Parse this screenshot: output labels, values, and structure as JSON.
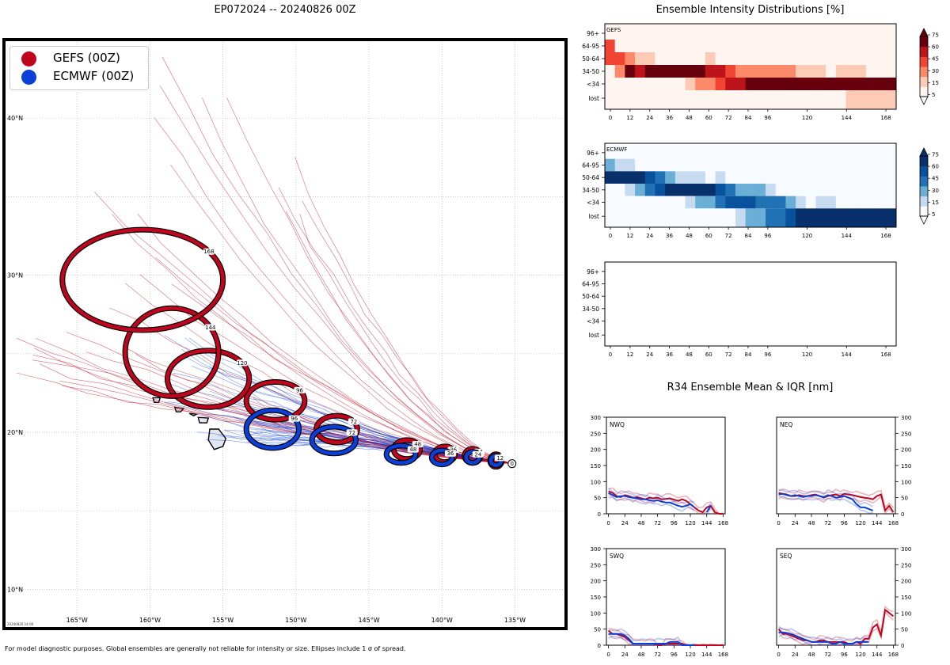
{
  "page": {
    "title": "EP072024 -- 20240826 00Z",
    "footer": "For model diagnostic purposes. Global ensembles are generally not reliable for intensity or size. Ellipses include 1 σ of spread.",
    "stamp": "20240826 14:06"
  },
  "colors": {
    "gefs": "#c0061f",
    "ecmwf": "#0a3fd8"
  },
  "map": {
    "legend": [
      {
        "label": "GEFS (00Z)",
        "color": "#c0061f"
      },
      {
        "label": "ECMWF (00Z)",
        "color": "#0a3fd8"
      }
    ],
    "lon_ticks": [
      "165°W",
      "160°W",
      "155°W",
      "150°W",
      "145°W",
      "140°W",
      "135°W"
    ],
    "lat_ticks": [
      "40°N",
      "30°N",
      "20°N",
      "10°N"
    ],
    "lon_range": [
      -170,
      -131.5
    ],
    "lat_range": [
      7.5,
      45
    ],
    "storm_start": [
      -135.2,
      18.0
    ],
    "gefs_ellipses": [
      {
        "label": "12",
        "lon": -136.3,
        "lat": 18.2,
        "rx": 0.4,
        "ry": 0.4
      },
      {
        "label": "24",
        "lon": -137.9,
        "lat": 18.5,
        "rx": 0.55,
        "ry": 0.45
      },
      {
        "label": "36",
        "lon": -139.8,
        "lat": 18.6,
        "rx": 0.7,
        "ry": 0.5
      },
      {
        "label": "48",
        "lon": -142.4,
        "lat": 18.9,
        "rx": 0.9,
        "ry": 0.6
      },
      {
        "label": "72",
        "lon": -147.2,
        "lat": 20.2,
        "rx": 1.4,
        "ry": 0.85
      },
      {
        "label": "96",
        "lon": -151.4,
        "lat": 22.0,
        "rx": 2.0,
        "ry": 1.2
      },
      {
        "label": "120",
        "lon": -156.0,
        "lat": 23.4,
        "rx": 2.8,
        "ry": 1.8
      },
      {
        "label": "144",
        "lon": -158.5,
        "lat": 25.1,
        "rx": 3.2,
        "ry": 2.8
      },
      {
        "label": "168",
        "lon": -160.5,
        "lat": 29.7,
        "rx": 5.5,
        "ry": 3.2
      }
    ],
    "ecmwf_ellipses": [
      {
        "label": "12",
        "lon": -136.3,
        "lat": 18.2,
        "rx": 0.35,
        "ry": 0.3
      },
      {
        "label": "24",
        "lon": -137.9,
        "lat": 18.4,
        "rx": 0.45,
        "ry": 0.35
      },
      {
        "label": "36",
        "lon": -140.0,
        "lat": 18.4,
        "rx": 0.7,
        "ry": 0.45
      },
      {
        "label": "48",
        "lon": -142.8,
        "lat": 18.6,
        "rx": 1.0,
        "ry": 0.55
      },
      {
        "label": "72",
        "lon": -147.4,
        "lat": 19.5,
        "rx": 1.5,
        "ry": 0.85
      },
      {
        "label": "96",
        "lon": -151.6,
        "lat": 20.2,
        "rx": 1.8,
        "ry": 1.2
      }
    ]
  },
  "intensity": {
    "title": "Ensemble Intensity Distributions [%]",
    "categories": [
      "96+",
      "64-95",
      "50-64",
      "34-50",
      "<34",
      "lost"
    ],
    "hours": [
      "0",
      "12",
      "24",
      "36",
      "48",
      "60",
      "72",
      "84",
      "96",
      "120",
      "144",
      "168"
    ],
    "panels": [
      {
        "name": "GEFS",
        "colorbar": [
          "75",
          "60",
          "45",
          "30",
          "15",
          "5"
        ]
      },
      {
        "name": "ECMWF",
        "colorbar": [
          "75",
          "60",
          "45",
          "30",
          "15",
          "5"
        ]
      },
      {
        "name": "",
        "colorbar": []
      }
    ]
  },
  "chart_data": {
    "type": "line",
    "title": "R34 Ensemble Mean & IQR [nm]",
    "hours": [
      0,
      6,
      12,
      18,
      24,
      30,
      36,
      42,
      48,
      54,
      60,
      66,
      72,
      78,
      84,
      90,
      96,
      102,
      108,
      114,
      120,
      126,
      132,
      138,
      144,
      150,
      156,
      162,
      168
    ],
    "yticks": [
      "0",
      "50",
      "100",
      "150",
      "200",
      "250",
      "300"
    ],
    "xticks": [
      "0",
      "24",
      "48",
      "72",
      "96",
      "120",
      "144",
      "168"
    ],
    "ylim": [
      0,
      300
    ],
    "xlim": [
      -3,
      171
    ],
    "quadrants": [
      {
        "name": "NWQ",
        "series": [
          {
            "name": "GEFS",
            "values": [
              70,
              65,
              55,
              52,
              58,
              55,
              50,
              52,
              48,
              45,
              50,
              48,
              50,
              45,
              46,
              48,
              44,
              40,
              45,
              40,
              30,
              20,
              10,
              5,
              20,
              25,
              5,
              0,
              0
            ]
          },
          {
            "name": "ECMWF",
            "values": [
              65,
              58,
              52,
              55,
              55,
              52,
              50,
              48,
              45,
              45,
              42,
              40,
              42,
              38,
              35,
              35,
              30,
              25,
              22,
              25,
              30,
              20,
              null,
              null,
              5,
              25,
              null,
              null,
              null
            ]
          }
        ]
      },
      {
        "name": "NEQ",
        "series": [
          {
            "name": "GEFS",
            "values": [
              65,
              62,
              60,
              55,
              55,
              58,
              55,
              55,
              58,
              60,
              55,
              50,
              55,
              58,
              60,
              55,
              62,
              60,
              58,
              55,
              52,
              50,
              48,
              45,
              55,
              60,
              10,
              25,
              5
            ]
          },
          {
            "name": "ECMWF",
            "values": [
              60,
              62,
              58,
              55,
              58,
              55,
              52,
              55,
              55,
              58,
              55,
              52,
              58,
              55,
              50,
              52,
              55,
              50,
              45,
              30,
              20,
              20,
              15,
              10,
              null,
              null,
              null,
              null,
              null
            ]
          }
        ]
      },
      {
        "name": "SWQ",
        "series": [
          {
            "name": "GEFS",
            "values": [
              45,
              35,
              35,
              30,
              25,
              15,
              5,
              5,
              5,
              5,
              5,
              5,
              0,
              0,
              5,
              5,
              5,
              5,
              5,
              0,
              0,
              0,
              0,
              0,
              0,
              0,
              0,
              0,
              0
            ]
          },
          {
            "name": "ECMWF",
            "values": [
              35,
              35,
              35,
              35,
              30,
              20,
              5,
              5,
              5,
              5,
              5,
              5,
              5,
              5,
              5,
              10,
              10,
              10,
              0,
              0,
              0,
              0,
              null,
              null,
              null,
              null,
              null,
              null,
              null
            ]
          }
        ]
      },
      {
        "name": "SEQ",
        "series": [
          {
            "name": "GEFS",
            "values": [
              50,
              35,
              35,
              30,
              25,
              20,
              15,
              15,
              10,
              10,
              15,
              15,
              10,
              10,
              10,
              10,
              10,
              5,
              5,
              10,
              5,
              20,
              20,
              55,
              65,
              30,
              110,
              100,
              90
            ]
          },
          {
            "name": "ECMWF",
            "values": [
              40,
              40,
              38,
              35,
              30,
              25,
              20,
              15,
              10,
              10,
              10,
              10,
              10,
              5,
              5,
              10,
              5,
              5,
              5,
              10,
              10,
              10,
              10,
              null,
              null,
              null,
              null,
              null,
              null
            ]
          }
        ]
      }
    ]
  }
}
